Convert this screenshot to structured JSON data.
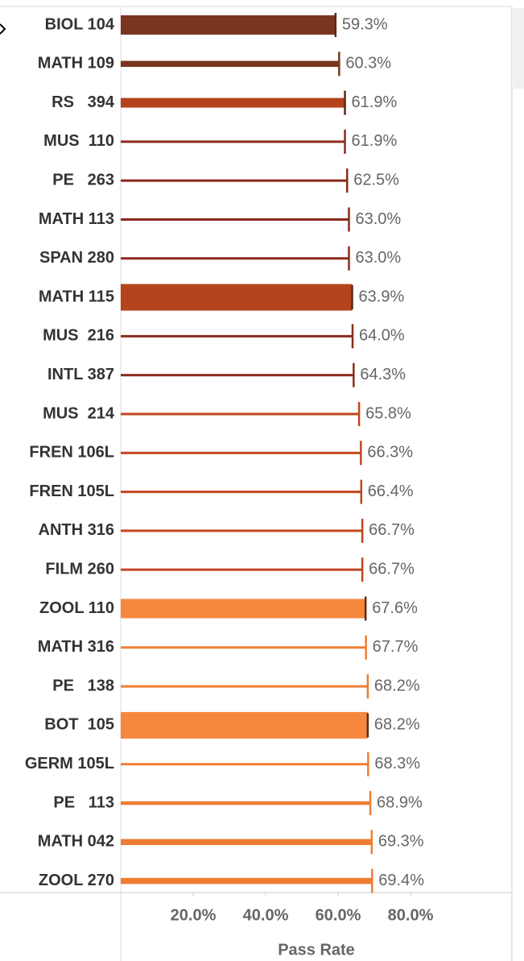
{
  "chart_data": {
    "type": "bar",
    "orientation": "horizontal",
    "x_label": "Pass Rate",
    "categories": [
      "BIOL 104",
      "MATH 109",
      "RS   394",
      "MUS  110",
      "PE   263",
      "MATH 113",
      "SPAN 280",
      "MATH 115",
      "MUS  216",
      "INTL 387",
      "MUS  214",
      "FREN 106L",
      "FREN 105L",
      "ANTH 316",
      "FILM 260",
      "ZOOL 110",
      "MATH 316",
      "PE   138",
      "BOT  105",
      "GERM 105L",
      "PE   113",
      "MATH 042",
      "ZOOL 270"
    ],
    "values": [
      59.3,
      60.3,
      61.9,
      61.9,
      62.5,
      63.0,
      63.0,
      63.9,
      64.0,
      64.3,
      65.8,
      66.3,
      66.4,
      66.7,
      66.7,
      67.6,
      67.7,
      68.2,
      68.2,
      68.3,
      68.9,
      69.3,
      69.4
    ],
    "value_labels": [
      "59.3%",
      "60.3%",
      "61.9%",
      "61.9%",
      "62.5%",
      "63.0%",
      "63.0%",
      "63.9%",
      "64.0%",
      "64.3%",
      "65.8%",
      "66.3%",
      "66.4%",
      "66.7%",
      "66.7%",
      "67.6%",
      "67.7%",
      "68.2%",
      "68.2%",
      "68.3%",
      "68.9%",
      "69.3%",
      "69.4%"
    ],
    "sizes": [
      8,
      2.5,
      4,
      1,
      1,
      1,
      1,
      11,
      1,
      1,
      1,
      1,
      1,
      1,
      1,
      8,
      1,
      1,
      11,
      1,
      1.5,
      2.5,
      2.5
    ],
    "colors": [
      "#7a3521",
      "#7a3521",
      "#b4441c",
      "#8c2a1c",
      "#8c2a1c",
      "#8c2a1c",
      "#8c2a1c",
      "#b4441c",
      "#8c2a1c",
      "#8c2a1c",
      "#c2461f",
      "#c2461f",
      "#c2461f",
      "#c2461f",
      "#c2461f",
      "#f5883c",
      "#ee7d34",
      "#ee7d34",
      "#f5883c",
      "#ee7d34",
      "#ee7d34",
      "#ee7d34",
      "#ee7d34"
    ],
    "xlim": [
      0,
      100
    ],
    "xticks": [
      {
        "value": 20,
        "label": "20.0%"
      },
      {
        "value": 40,
        "label": "40.0%"
      },
      {
        "value": 60,
        "label": "60.0%"
      },
      {
        "value": 80,
        "label": "80.0%"
      }
    ]
  }
}
